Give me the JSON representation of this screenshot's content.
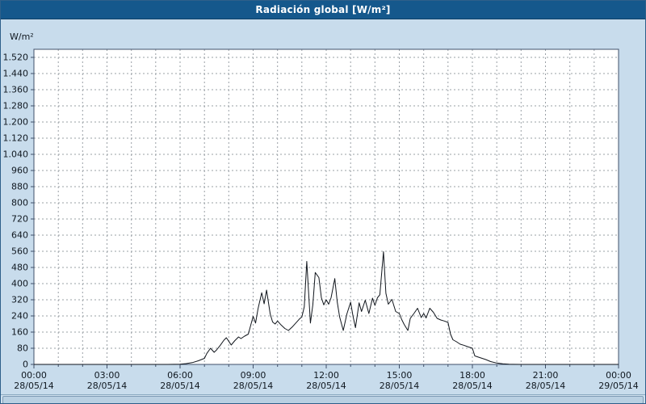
{
  "title": "Radiación global [W/m²]",
  "colors": {
    "titlebar": "#15588c",
    "frame_bg": "#c8dcec",
    "plot_bg": "#ffffff",
    "grid": "#9aa0a6",
    "line": "#10151c",
    "text": "#101820",
    "border": "#40506a"
  },
  "chart_data": {
    "type": "line",
    "title": "Radiación global [W/m²]",
    "xlabel": "",
    "ylabel": "W/m²",
    "ylim": [
      0,
      1520
    ],
    "y_tick_step": 80,
    "y_tick_labels": [
      "0",
      "80",
      "160",
      "240",
      "320",
      "400",
      "480",
      "560",
      "640",
      "720",
      "800",
      "880",
      "960",
      "1.040",
      "1.120",
      "1.200",
      "1.280",
      "1.360",
      "1.440",
      "1.520"
    ],
    "x_range_hours": [
      0,
      24
    ],
    "x_tick_interval_hours": 3,
    "grid": "dashed",
    "legend_position": "none",
    "x_ticks": [
      {
        "time": "00:00",
        "date": "28/05/14"
      },
      {
        "time": "03:00",
        "date": "28/05/14"
      },
      {
        "time": "06:00",
        "date": "28/05/14"
      },
      {
        "time": "09:00",
        "date": "28/05/14"
      },
      {
        "time": "12:00",
        "date": "28/05/14"
      },
      {
        "time": "15:00",
        "date": "28/05/14"
      },
      {
        "time": "18:00",
        "date": "28/05/14"
      },
      {
        "time": "21:00",
        "date": "28/05/14"
      },
      {
        "time": "00:00",
        "date": "29/05/14"
      }
    ],
    "series": [
      {
        "name": "Radiación global",
        "color": "#10151c",
        "points": [
          [
            0,
            0
          ],
          [
            1,
            0
          ],
          [
            2,
            0
          ],
          [
            3,
            0
          ],
          [
            4,
            0
          ],
          [
            5,
            0
          ],
          [
            5.5,
            0
          ],
          [
            6,
            1
          ],
          [
            6.25,
            4
          ],
          [
            6.5,
            9
          ],
          [
            6.75,
            18
          ],
          [
            7,
            30
          ],
          [
            7.1,
            55
          ],
          [
            7.25,
            80
          ],
          [
            7.4,
            60
          ],
          [
            7.5,
            72
          ],
          [
            7.65,
            95
          ],
          [
            7.8,
            120
          ],
          [
            7.9,
            132
          ],
          [
            8,
            115
          ],
          [
            8.1,
            96
          ],
          [
            8.25,
            118
          ],
          [
            8.4,
            136
          ],
          [
            8.5,
            128
          ],
          [
            8.65,
            140
          ],
          [
            8.8,
            150
          ],
          [
            9,
            238
          ],
          [
            9.1,
            205
          ],
          [
            9.2,
            275
          ],
          [
            9.35,
            355
          ],
          [
            9.45,
            300
          ],
          [
            9.55,
            368
          ],
          [
            9.7,
            250
          ],
          [
            9.8,
            210
          ],
          [
            9.9,
            200
          ],
          [
            10,
            215
          ],
          [
            10.15,
            195
          ],
          [
            10.3,
            178
          ],
          [
            10.45,
            168
          ],
          [
            10.6,
            185
          ],
          [
            10.75,
            205
          ],
          [
            10.9,
            225
          ],
          [
            11,
            235
          ],
          [
            11.1,
            285
          ],
          [
            11.2,
            510
          ],
          [
            11.35,
            205
          ],
          [
            11.45,
            295
          ],
          [
            11.55,
            455
          ],
          [
            11.7,
            430
          ],
          [
            11.8,
            330
          ],
          [
            11.9,
            295
          ],
          [
            12,
            320
          ],
          [
            12.1,
            298
          ],
          [
            12.2,
            330
          ],
          [
            12.35,
            425
          ],
          [
            12.45,
            310
          ],
          [
            12.55,
            235
          ],
          [
            12.7,
            168
          ],
          [
            12.85,
            250
          ],
          [
            13,
            308
          ],
          [
            13.1,
            238
          ],
          [
            13.2,
            182
          ],
          [
            13.35,
            305
          ],
          [
            13.45,
            262
          ],
          [
            13.6,
            318
          ],
          [
            13.75,
            252
          ],
          [
            13.9,
            328
          ],
          [
            14,
            292
          ],
          [
            14.1,
            330
          ],
          [
            14.2,
            345
          ],
          [
            14.35,
            558
          ],
          [
            14.45,
            352
          ],
          [
            14.55,
            298
          ],
          [
            14.7,
            322
          ],
          [
            14.85,
            262
          ],
          [
            15,
            252
          ],
          [
            15.1,
            222
          ],
          [
            15.2,
            198
          ],
          [
            15.35,
            168
          ],
          [
            15.45,
            228
          ],
          [
            15.6,
            252
          ],
          [
            15.75,
            278
          ],
          [
            15.9,
            232
          ],
          [
            16,
            252
          ],
          [
            16.1,
            230
          ],
          [
            16.25,
            278
          ],
          [
            16.4,
            258
          ],
          [
            16.55,
            228
          ],
          [
            16.7,
            220
          ],
          [
            16.85,
            215
          ],
          [
            17,
            208
          ],
          [
            17.1,
            150
          ],
          [
            17.2,
            122
          ],
          [
            17.35,
            112
          ],
          [
            17.5,
            100
          ],
          [
            17.65,
            95
          ],
          [
            17.8,
            88
          ],
          [
            18,
            80
          ],
          [
            18.1,
            42
          ],
          [
            18.25,
            36
          ],
          [
            18.4,
            30
          ],
          [
            18.55,
            24
          ],
          [
            18.75,
            14
          ],
          [
            19,
            7
          ],
          [
            19.25,
            3
          ],
          [
            19.5,
            1
          ],
          [
            20,
            0
          ],
          [
            21,
            0
          ],
          [
            22,
            0
          ],
          [
            23,
            0
          ],
          [
            24,
            0
          ]
        ]
      }
    ]
  }
}
